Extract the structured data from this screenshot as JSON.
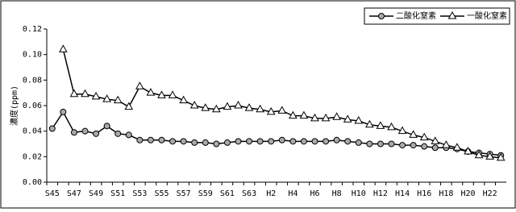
{
  "chart_data": {
    "type": "line",
    "y_label": "濃度(ppm)",
    "categories": [
      "S45",
      null,
      "S47",
      null,
      "S49",
      null,
      "S51",
      null,
      "S53",
      null,
      "S55",
      null,
      "S57",
      null,
      "S59",
      null,
      "S61",
      null,
      "S63",
      null,
      "H2",
      null,
      "H4",
      null,
      "H6",
      null,
      "H8",
      null,
      "H10",
      null,
      "H12",
      null,
      "H14",
      null,
      "H16",
      null,
      "H18",
      null,
      "H20",
      null,
      "H22",
      null
    ],
    "series": [
      {
        "name": "二酸化窒素",
        "marker": "circle",
        "color": "#000000",
        "values": [
          0.042,
          0.055,
          0.039,
          0.04,
          0.038,
          0.044,
          0.038,
          0.037,
          0.033,
          0.033,
          0.033,
          0.032,
          0.032,
          0.031,
          0.031,
          0.03,
          0.031,
          0.032,
          0.032,
          0.032,
          0.032,
          0.033,
          0.032,
          0.032,
          0.032,
          0.032,
          0.033,
          0.032,
          0.031,
          0.03,
          0.03,
          0.03,
          0.029,
          0.029,
          0.028,
          0.027,
          0.027,
          0.026,
          0.024,
          0.023,
          0.022,
          0.021
        ]
      },
      {
        "name": "一酸化窒素",
        "marker": "triangle",
        "color": "#000000",
        "values": [
          null,
          0.104,
          0.069,
          0.069,
          0.067,
          0.065,
          0.064,
          0.059,
          0.075,
          0.07,
          0.068,
          0.068,
          0.064,
          0.06,
          0.058,
          0.057,
          0.059,
          0.06,
          0.058,
          0.057,
          0.055,
          0.056,
          0.052,
          0.052,
          0.05,
          0.05,
          0.051,
          0.049,
          0.048,
          0.045,
          0.044,
          0.043,
          0.04,
          0.037,
          0.035,
          0.032,
          0.029,
          0.027,
          0.024,
          0.021,
          0.02,
          0.019
        ]
      }
    ],
    "ylim": [
      0,
      0.12
    ],
    "yticks": [
      {
        "value": 0,
        "label": "0.00"
      },
      {
        "value": 0.02,
        "label": "0.02"
      },
      {
        "value": 0.04,
        "label": "0.04"
      },
      {
        "value": 0.06,
        "label": "0.06"
      },
      {
        "value": 0.08,
        "label": "0.08"
      },
      {
        "value": 0.1,
        "label": "0.10"
      },
      {
        "value": 0.12,
        "label": "0.12"
      }
    ],
    "legend": "top-right"
  }
}
